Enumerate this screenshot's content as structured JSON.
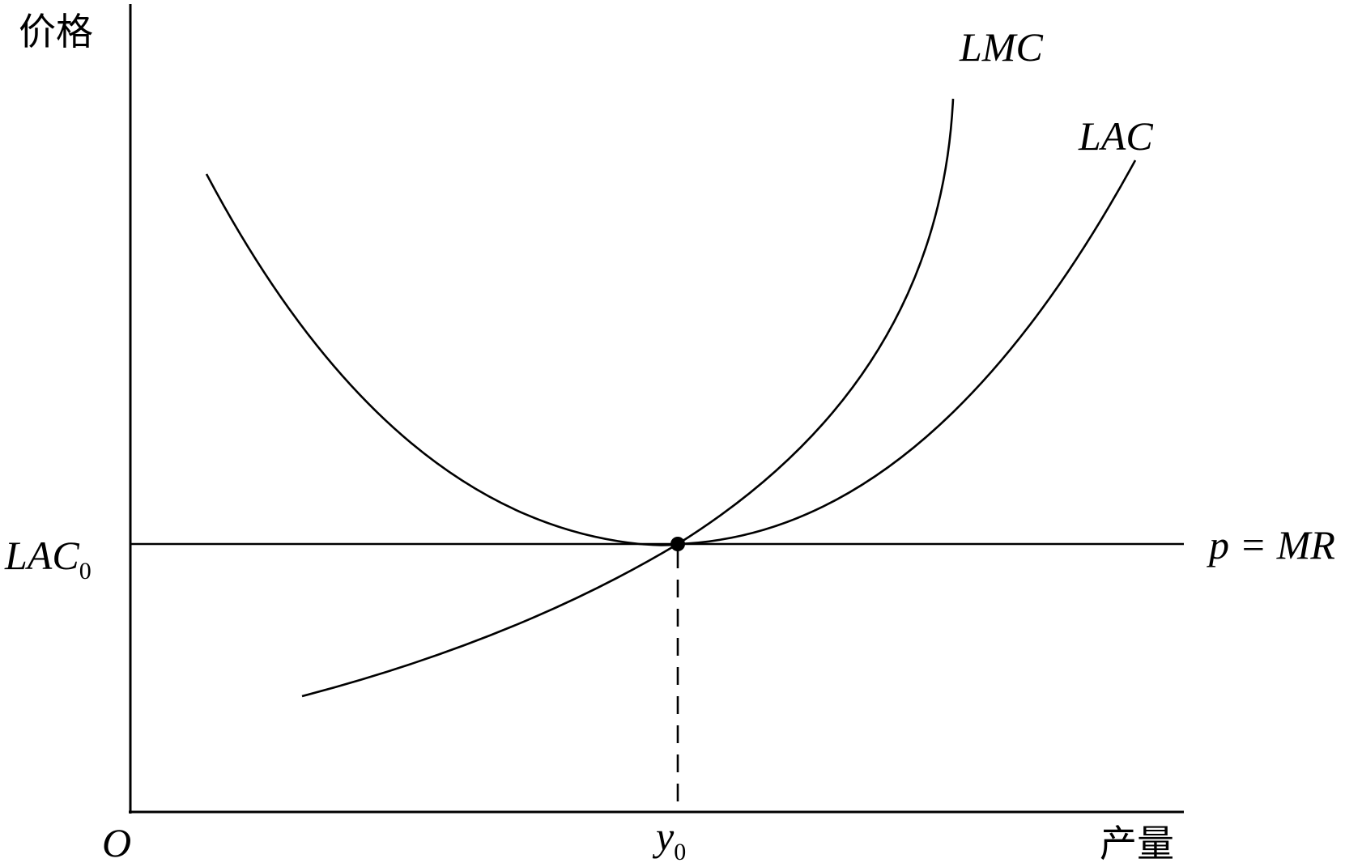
{
  "y_axis_label": "价格",
  "x_axis_label": "产量",
  "origin_label": "O",
  "curves": {
    "lmc": "LMC",
    "lac": "LAC"
  },
  "price_line": {
    "label": "p = MR"
  },
  "level_label": {
    "base": "LAC",
    "sub": "0"
  },
  "quantity_label": {
    "base": "y",
    "sub": "0"
  }
}
